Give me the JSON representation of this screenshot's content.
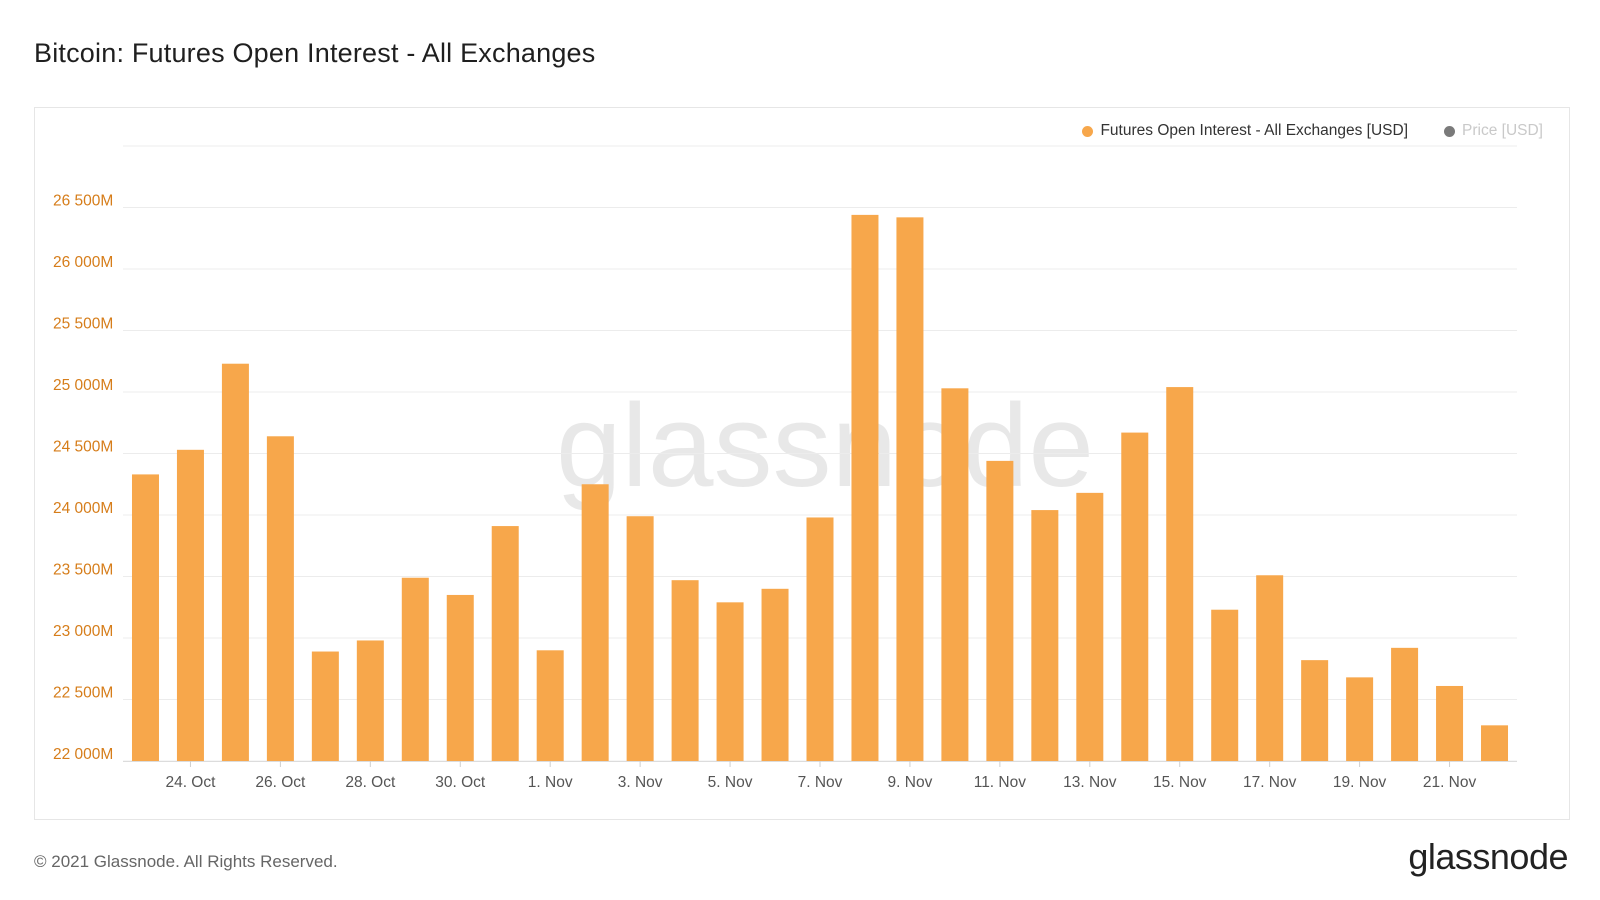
{
  "title": "Bitcoin: Futures Open Interest - All Exchanges",
  "footer": "© 2021 Glassnode. All Rights Reserved.",
  "brand": "glassnode",
  "watermark": "glassnode",
  "colors": {
    "bar": "#f7a74b",
    "axis_label": "#d67d1a",
    "grid": "#ececec"
  },
  "legend": [
    {
      "label": "Futures Open Interest - All Exchanges [USD]",
      "color": "#f7a74b",
      "active": true
    },
    {
      "label": "Price [USD]",
      "color": "#7a7a7a",
      "active": false
    }
  ],
  "chart_data": {
    "type": "bar",
    "ylim": [
      22000,
      27000
    ],
    "y_unit": "M",
    "y_ticks": [
      {
        "value": 22000,
        "label": "22 000M"
      },
      {
        "value": 22500,
        "label": "22 500M"
      },
      {
        "value": 23000,
        "label": "23 000M"
      },
      {
        "value": 23500,
        "label": "23 500M"
      },
      {
        "value": 24000,
        "label": "24 000M"
      },
      {
        "value": 24500,
        "label": "24 500M"
      },
      {
        "value": 25000,
        "label": "25 000M"
      },
      {
        "value": 25500,
        "label": "25 500M"
      },
      {
        "value": 26000,
        "label": "26 000M"
      },
      {
        "value": 26500,
        "label": "26 500M"
      }
    ],
    "categories": [
      "23. Oct",
      "24. Oct",
      "25. Oct",
      "26. Oct",
      "27. Oct",
      "28. Oct",
      "29. Oct",
      "30. Oct",
      "31. Oct",
      "1. Nov",
      "2. Nov",
      "3. Nov",
      "4. Nov",
      "5. Nov",
      "6. Nov",
      "7. Nov",
      "8. Nov",
      "9. Nov",
      "10. Nov",
      "11. Nov",
      "12. Nov",
      "13. Nov",
      "14. Nov",
      "15. Nov",
      "16. Nov",
      "17. Nov",
      "18. Nov",
      "19. Nov",
      "20. Nov",
      "21. Nov",
      "22. Nov"
    ],
    "x_tick_labels": [
      "24. Oct",
      "26. Oct",
      "28. Oct",
      "30. Oct",
      "1. Nov",
      "3. Nov",
      "5. Nov",
      "7. Nov",
      "9. Nov",
      "11. Nov",
      "13. Nov",
      "15. Nov",
      "17. Nov",
      "19. Nov",
      "21. Nov"
    ],
    "series": [
      {
        "name": "Futures Open Interest - All Exchanges [USD]",
        "values": [
          24330,
          24530,
          25230,
          24640,
          22890,
          22980,
          23490,
          23350,
          23910,
          22900,
          24250,
          23990,
          23470,
          23290,
          23400,
          23980,
          26440,
          26420,
          25030,
          24440,
          24040,
          24180,
          24670,
          25040,
          23230,
          23510,
          22820,
          22680,
          22920,
          22610,
          22290
        ]
      }
    ]
  }
}
